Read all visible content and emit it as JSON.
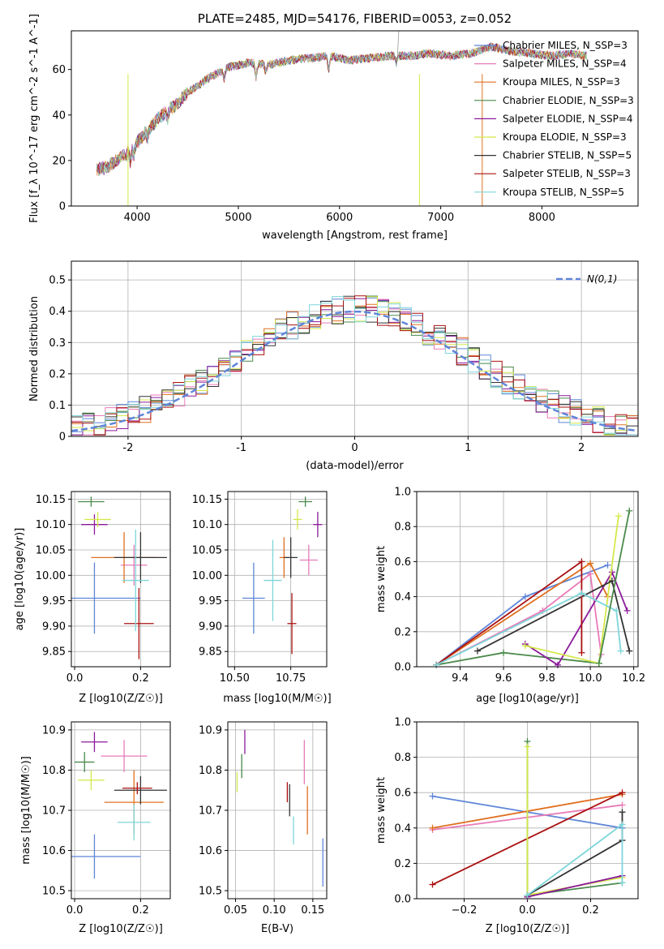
{
  "chart_data": [
    {
      "id": "spectrum",
      "type": "line",
      "title": "PLATE=2485, MJD=54176, FIBERID=0053, z=0.052",
      "xlabel": "wavelength [Angstrom, rest frame]",
      "ylabel": "Flux [f_λ 10^-17 erg cm^-2 s^-1 A^-1]",
      "xlim": [
        3350,
        8950
      ],
      "ylim": [
        0,
        77
      ],
      "xticks": [
        4000,
        5000,
        6000,
        7000,
        8000
      ],
      "yticks": [
        0,
        20,
        40,
        60
      ],
      "legend": "right",
      "continuum": {
        "x": [
          3600,
          3700,
          3800,
          3900,
          4000,
          4100,
          4200,
          4300,
          4400,
          4500,
          4700,
          4900,
          5100,
          5300,
          5500,
          5700,
          5900,
          6100,
          6300,
          6500,
          6700,
          6900,
          7100,
          7300,
          7500,
          7700,
          7900,
          8100,
          8300,
          8450
        ],
        "y": [
          16,
          17,
          20,
          23,
          28,
          33,
          38,
          42,
          45,
          50,
          56,
          61,
          63,
          62,
          64,
          65,
          66,
          64,
          65,
          66,
          66,
          67,
          66,
          67,
          70,
          68,
          67,
          66,
          67,
          66
        ]
      },
      "series": [
        {
          "name": "Chabrier MILES, N_SSP=3",
          "color": "#5e85d8"
        },
        {
          "name": "Salpeter MILES, N_SSP=4",
          "color": "#e87ab8"
        },
        {
          "name": "Kroupa MILES, N_SSP=3",
          "color": "#e07020"
        },
        {
          "name": "Chabrier ELODIE, N_SSP=3",
          "color": "#4a8a4a"
        },
        {
          "name": "Salpeter ELODIE, N_SSP=4",
          "color": "#8b1a9a"
        },
        {
          "name": "Kroupa ELODIE, N_SSP=3",
          "color": "#d4e84a"
        },
        {
          "name": "Chabrier STELIB, N_SSP=5",
          "color": "#333333"
        },
        {
          "name": "Salpeter STELIB, N_SSP=3",
          "color": "#aa1010"
        },
        {
          "name": "Kroupa STELIB, N_SSP=5",
          "color": "#7ed6da"
        }
      ]
    },
    {
      "id": "residuals",
      "type": "line",
      "xlabel": "(data-model)/error",
      "ylabel": "Normed distribution",
      "xlim": [
        -2.5,
        2.5
      ],
      "ylim": [
        0,
        0.56
      ],
      "xticks": [
        -2,
        -1,
        0,
        1,
        2
      ],
      "yticks": [
        0.0,
        0.1,
        0.2,
        0.3,
        0.4,
        0.5
      ],
      "grid": true,
      "legend": "top-right",
      "reference": {
        "name": "N(0,1)",
        "color": "#5e85d8",
        "style": "dashed"
      },
      "bin_width": 0.1
    },
    {
      "id": "age_vs_Z",
      "type": "scatter",
      "xlabel": "Z [log10(Z/Z☉)]",
      "ylabel": "age [log10(age/yr)]",
      "xlim": [
        -0.01,
        0.29
      ],
      "ylim": [
        9.82,
        10.165
      ],
      "xticks": [
        "0.0",
        "0.2"
      ],
      "yticks": [
        "9.85",
        "9.90",
        "9.95",
        "10.00",
        "10.05",
        "10.10",
        "10.15"
      ],
      "grid": true,
      "points": [
        {
          "x": 0.06,
          "y": 9.955,
          "xerr": 0.14,
          "yerr": 0.07,
          "color": "#5e85d8"
        },
        {
          "x": 0.18,
          "y": 10.02,
          "xerr": 0.04,
          "yerr": 0.04,
          "color": "#e87ab8"
        },
        {
          "x": 0.15,
          "y": 10.035,
          "xerr": 0.1,
          "yerr": 0.05,
          "color": "#e07020"
        },
        {
          "x": 0.05,
          "y": 10.145,
          "xerr": 0.04,
          "yerr": 0.01,
          "color": "#4a8a4a"
        },
        {
          "x": 0.06,
          "y": 10.1,
          "xerr": 0.04,
          "yerr": 0.02,
          "color": "#8b1a9a"
        },
        {
          "x": 0.07,
          "y": 10.11,
          "xerr": 0.04,
          "yerr": 0.015,
          "color": "#d4e84a"
        },
        {
          "x": 0.2,
          "y": 10.035,
          "xerr": 0.08,
          "yerr": 0.05,
          "color": "#333333"
        },
        {
          "x": 0.195,
          "y": 9.905,
          "xerr": 0.045,
          "yerr": 0.07,
          "color": "#aa1010"
        },
        {
          "x": 0.185,
          "y": 9.99,
          "xerr": 0.04,
          "yerr": 0.1,
          "color": "#7ed6da"
        }
      ]
    },
    {
      "id": "age_vs_mass",
      "type": "scatter",
      "xlabel": "mass [log10(M/M☉)]",
      "xlim": [
        10.47,
        10.91
      ],
      "ylim": [
        9.82,
        10.165
      ],
      "xticks": [
        "10.50",
        "10.75"
      ],
      "yticks": [
        "9.85",
        "9.90",
        "9.95",
        "10.00",
        "10.05",
        "10.10",
        "10.15"
      ],
      "grid": true,
      "points": [
        {
          "x": 10.585,
          "y": 9.955,
          "xerr": 0.05,
          "yerr": 0.07,
          "color": "#5e85d8"
        },
        {
          "x": 10.83,
          "y": 10.03,
          "xerr": 0.04,
          "yerr": 0.03,
          "color": "#e87ab8"
        },
        {
          "x": 10.72,
          "y": 10.035,
          "xerr": 0.02,
          "yerr": 0.04,
          "color": "#e07020"
        },
        {
          "x": 10.815,
          "y": 10.145,
          "xerr": 0.03,
          "yerr": 0.01,
          "color": "#4a8a4a"
        },
        {
          "x": 10.87,
          "y": 10.1,
          "xerr": 0.02,
          "yerr": 0.025,
          "color": "#8b1a9a"
        },
        {
          "x": 10.78,
          "y": 10.11,
          "xerr": 0.02,
          "yerr": 0.02,
          "color": "#d4e84a"
        },
        {
          "x": 10.75,
          "y": 10.035,
          "xerr": 0.03,
          "yerr": 0.04,
          "color": "#333333"
        },
        {
          "x": 10.755,
          "y": 9.905,
          "xerr": 0.02,
          "yerr": 0.06,
          "color": "#aa1010"
        },
        {
          "x": 10.67,
          "y": 9.99,
          "xerr": 0.04,
          "yerr": 0.08,
          "color": "#7ed6da"
        }
      ]
    },
    {
      "id": "mass_weight_vs_age",
      "type": "line",
      "xlabel": "age [log10(age/yr)]",
      "ylabel": "mass weight",
      "xlim": [
        9.2,
        10.22
      ],
      "ylim": [
        0,
        1
      ],
      "xticks": [
        "9.4",
        "9.6",
        "9.8",
        "10.0",
        "10.2"
      ],
      "yticks": [
        "0.0",
        "0.2",
        "0.4",
        "0.6",
        "0.8",
        "1.0"
      ],
      "grid": true,
      "series": [
        {
          "color": "#5e85d8",
          "x": [
            9.29,
            9.7,
            10.08
          ],
          "y": [
            0.01,
            0.4,
            0.58
          ]
        },
        {
          "color": "#e87ab8",
          "x": [
            9.29,
            9.78,
            10.0,
            10.05
          ],
          "y": [
            0.01,
            0.32,
            0.53,
            0.07
          ]
        },
        {
          "color": "#e07020",
          "x": [
            9.29,
            10.0,
            10.08
          ],
          "y": [
            0.01,
            0.59,
            0.4
          ]
        },
        {
          "color": "#4a8a4a",
          "x": [
            9.29,
            9.6,
            10.04
          ],
          "y": [
            0.01,
            0.08,
            0.02
          ]
        },
        {
          "color": "#8b1a9a",
          "x": [
            9.7,
            9.85,
            10.1,
            10.17
          ],
          "y": [
            0.13,
            0.01,
            0.54,
            0.32
          ]
        },
        {
          "color": "#d4e84a",
          "x": [
            9.7,
            10.04,
            10.13
          ],
          "y": [
            0.12,
            0.02,
            0.86
          ]
        },
        {
          "color": "#333333",
          "x": [
            9.48,
            10.1,
            10.18
          ],
          "y": [
            0.09,
            0.49,
            0.09
          ]
        },
        {
          "color": "#aa1010",
          "x": [
            9.29,
            9.96,
            9.96
          ],
          "y": [
            0.01,
            0.6,
            0.08
          ]
        },
        {
          "color": "#7ed6da",
          "x": [
            9.29,
            9.96,
            10.12,
            10.14
          ],
          "y": [
            0.01,
            0.42,
            0.32,
            0.09
          ]
        },
        {
          "color": "#4a8a4a",
          "x": [
            10.04,
            10.18
          ],
          "y": [
            0.02,
            0.89
          ]
        }
      ]
    },
    {
      "id": "mass_vs_Z",
      "type": "scatter",
      "xlabel": "Z [log10(Z/Z☉)]",
      "ylabel": "mass [log10(M/M☉)]",
      "xlim": [
        -0.01,
        0.29
      ],
      "ylim": [
        10.48,
        10.92
      ],
      "xticks": [
        "0.0",
        "0.2"
      ],
      "yticks": [
        "10.5",
        "10.6",
        "10.7",
        "10.8",
        "10.9"
      ],
      "grid": true,
      "points": [
        {
          "x": 0.06,
          "y": 10.585,
          "xerr": 0.14,
          "yerr": 0.055,
          "color": "#5e85d8"
        },
        {
          "x": 0.15,
          "y": 10.835,
          "xerr": 0.07,
          "yerr": 0.04,
          "color": "#e87ab8"
        },
        {
          "x": 0.18,
          "y": 10.72,
          "xerr": 0.09,
          "yerr": 0.08,
          "color": "#e07020"
        },
        {
          "x": 0.03,
          "y": 10.82,
          "xerr": 0.03,
          "yerr": 0.025,
          "color": "#4a8a4a"
        },
        {
          "x": 0.06,
          "y": 10.87,
          "xerr": 0.04,
          "yerr": 0.025,
          "color": "#8b1a9a"
        },
        {
          "x": 0.05,
          "y": 10.775,
          "xerr": 0.04,
          "yerr": 0.025,
          "color": "#d4e84a"
        },
        {
          "x": 0.2,
          "y": 10.75,
          "xerr": 0.08,
          "yerr": 0.035,
          "color": "#333333"
        },
        {
          "x": 0.19,
          "y": 10.755,
          "xerr": 0.045,
          "yerr": 0.015,
          "color": "#aa1010"
        },
        {
          "x": 0.18,
          "y": 10.67,
          "xerr": 0.05,
          "yerr": 0.045,
          "color": "#7ed6da"
        }
      ]
    },
    {
      "id": "mass_vs_ebv",
      "type": "scatter",
      "xlabel": "E(B-V)",
      "xlim": [
        0.04,
        0.168
      ],
      "ylim": [
        10.48,
        10.92
      ],
      "xticks": [
        "0.05",
        "0.10",
        "0.15"
      ],
      "yticks": [
        "10.5",
        "10.6",
        "10.7",
        "10.8",
        "10.9"
      ],
      "grid": true,
      "points": [
        {
          "x": 0.163,
          "y": 10.57,
          "yerr": 0.06,
          "color": "#5e85d8"
        },
        {
          "x": 0.139,
          "y": 10.82,
          "yerr": 0.055,
          "color": "#e87ab8"
        },
        {
          "x": 0.143,
          "y": 10.7,
          "yerr": 0.06,
          "color": "#e07020"
        },
        {
          "x": 0.058,
          "y": 10.81,
          "yerr": 0.03,
          "color": "#4a8a4a"
        },
        {
          "x": 0.062,
          "y": 10.87,
          "yerr": 0.03,
          "color": "#8b1a9a"
        },
        {
          "x": 0.052,
          "y": 10.77,
          "yerr": 0.025,
          "color": "#d4e84a"
        },
        {
          "x": 0.12,
          "y": 10.725,
          "yerr": 0.04,
          "color": "#333333"
        },
        {
          "x": 0.117,
          "y": 10.745,
          "yerr": 0.025,
          "color": "#aa1010"
        },
        {
          "x": 0.125,
          "y": 10.65,
          "yerr": 0.035,
          "color": "#7ed6da"
        }
      ]
    },
    {
      "id": "mass_weight_vs_Z",
      "type": "line",
      "xlabel": "Z [log10(Z/Z☉)]",
      "ylabel": "mass weight",
      "xlim": [
        -0.35,
        0.35
      ],
      "ylim": [
        0,
        1
      ],
      "xticks": [
        "−0.2",
        "0.0",
        "0.2"
      ],
      "yticks": [
        "0.0",
        "0.2",
        "0.4",
        "0.6",
        "0.8",
        "1.0"
      ],
      "grid": true,
      "series": [
        {
          "color": "#5e85d8",
          "x": [
            -0.3,
            0.3
          ],
          "y": [
            0.58,
            0.4
          ]
        },
        {
          "color": "#e87ab8",
          "x": [
            -0.3,
            0.3
          ],
          "y": [
            0.39,
            0.53
          ]
        },
        {
          "color": "#e07020",
          "x": [
            -0.3,
            0.3
          ],
          "y": [
            0.4,
            0.59
          ]
        },
        {
          "color": "#aa1010",
          "x": [
            -0.3,
            0.3
          ],
          "y": [
            0.08,
            0.6
          ]
        },
        {
          "color": "#4a8a4a",
          "x": [
            0.0,
            0.0,
            0.3
          ],
          "y": [
            0.89,
            0.02,
            0.09
          ]
        },
        {
          "color": "#d4e84a",
          "x": [
            0.0,
            0.0,
            0.3
          ],
          "y": [
            0.86,
            0.02,
            0.12
          ]
        },
        {
          "color": "#8b1a9a",
          "x": [
            0.0,
            0.3
          ],
          "y": [
            0.01,
            0.13
          ]
        },
        {
          "color": "#333333",
          "x": [
            0.0,
            0.3,
            0.3
          ],
          "y": [
            0.02,
            0.33,
            0.49
          ]
        },
        {
          "color": "#7ed6da",
          "x": [
            0.0,
            0.3,
            0.3
          ],
          "y": [
            0.02,
            0.42,
            0.09
          ]
        }
      ]
    }
  ]
}
